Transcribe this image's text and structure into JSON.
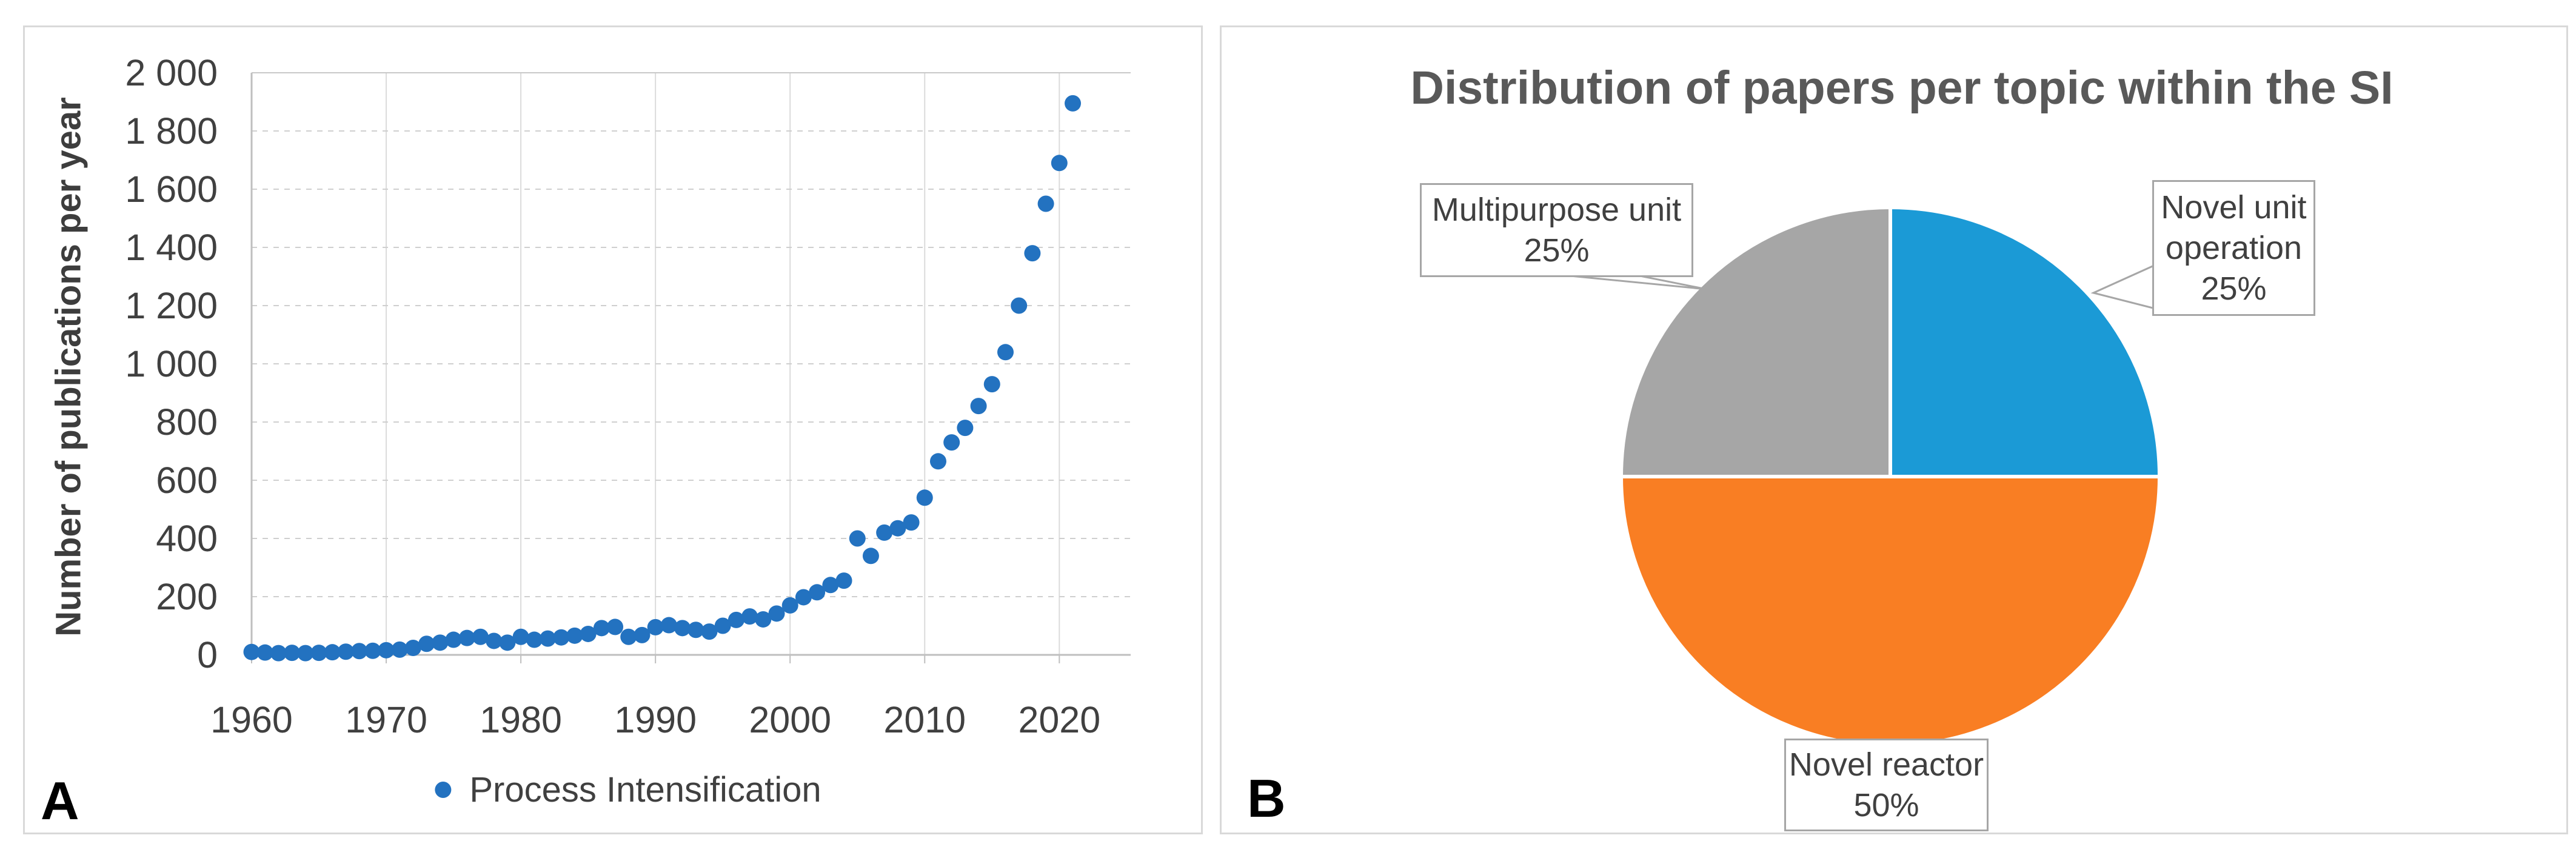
{
  "panels": {
    "a_label": "A",
    "b_label": "B"
  },
  "chart_data": [
    {
      "panel": "A",
      "type": "scatter",
      "title": "",
      "xlabel": "",
      "ylabel": "Number of publications per year",
      "legend_label": "Process Intensification",
      "legend_position": "bottom",
      "point_color": "#2372C0",
      "grid": true,
      "xlim": [
        1960,
        2025.3
      ],
      "ylim": [
        0,
        2000
      ],
      "x_ticks": [
        1960,
        1970,
        1980,
        1990,
        2000,
        2010,
        2020
      ],
      "y_ticks": [
        0,
        200,
        400,
        600,
        800,
        1000,
        1200,
        1400,
        1600,
        1800,
        2000
      ],
      "y_tick_labels": [
        "0",
        "200",
        "400",
        "600",
        "800",
        "1 000",
        "1 200",
        "1 400",
        "1 600",
        "1 800",
        "2 000"
      ],
      "x": [
        1960,
        1961,
        1962,
        1963,
        1964,
        1965,
        1966,
        1967,
        1968,
        1969,
        1970,
        1971,
        1972,
        1973,
        1974,
        1975,
        1976,
        1977,
        1978,
        1979,
        1980,
        1981,
        1982,
        1983,
        1984,
        1985,
        1986,
        1987,
        1988,
        1989,
        1990,
        1991,
        1992,
        1993,
        1994,
        1995,
        1996,
        1997,
        1998,
        1999,
        2000,
        2001,
        2002,
        2003,
        2004,
        2005,
        2006,
        2007,
        2008,
        2009,
        2010,
        2011,
        2012,
        2013,
        2014,
        2015,
        2016,
        2017,
        2018,
        2019,
        2020,
        2021
      ],
      "y": [
        10,
        8,
        6,
        7,
        6,
        7,
        9,
        11,
        13,
        14,
        16,
        18,
        24,
        38,
        42,
        52,
        58,
        62,
        48,
        42,
        62,
        52,
        56,
        60,
        66,
        72,
        92,
        96,
        62,
        68,
        95,
        102,
        92,
        86,
        80,
        100,
        120,
        132,
        122,
        142,
        170,
        198,
        215,
        240,
        255,
        400,
        340,
        420,
        435,
        455,
        540,
        665,
        730,
        780,
        855,
        930,
        1040,
        1200,
        1380,
        1550,
        1690,
        1895
      ]
    },
    {
      "panel": "B",
      "type": "pie",
      "title": "Distribution of papers per topic within the SI",
      "start_angle_deg": 0,
      "direction": "clockwise",
      "slices": [
        {
          "label": "Novel unit operation",
          "pct": 25,
          "color": "#1B9AD6",
          "callout_lines": [
            "Novel unit",
            "operation",
            "25%"
          ]
        },
        {
          "label": "Novel reactor",
          "pct": 50,
          "color": "#F97E23",
          "callout_lines": [
            "Novel reactor",
            "50%"
          ]
        },
        {
          "label": "Multipurpose unit",
          "pct": 25,
          "color": "#A6A6A6",
          "callout_lines": [
            "Multipurpose unit",
            "25%"
          ]
        }
      ]
    }
  ]
}
